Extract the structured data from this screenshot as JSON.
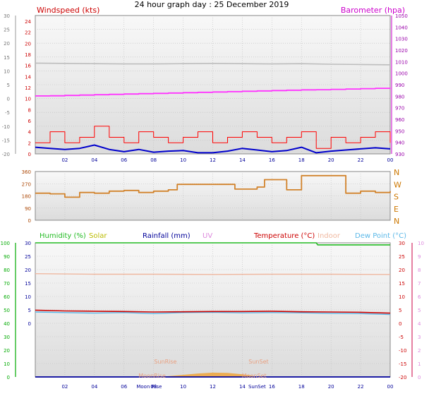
{
  "title": "24 hour graph day : 25 December 2019",
  "colors": {
    "bg": "#ffffff",
    "plot_top": "#f8f8f8",
    "plot_bottom": "#dcdcdc",
    "grid": "#bdbdbd",
    "wind_label": "#cc0000",
    "wind_gust": "#ff0000",
    "wind_avg": "#0000cc",
    "baro": "#cc00cc",
    "baro_line": "#ff33ff",
    "baro_ticks": "#9900aa",
    "grey_series": "#bdbdbd",
    "dir_line": "#d2832c",
    "dir_label": "#cc7700",
    "humidity": "#22bb22",
    "humidity_axis": "#00aa00",
    "solar": "#bbbb00",
    "rainfall": "#000099",
    "uv": "#dd88dd",
    "temperature": "#cc0000",
    "indoor": "#f0b8a0",
    "dewpoint": "#5bb8e8",
    "temp_right_axis": "#cc0044",
    "sun_fill": "#f0a030",
    "moon_text": "#000099",
    "sunrise_text": "#e8a080",
    "x_axis_text": "#000099",
    "left_axis_text": "#777777"
  },
  "chart_data": [
    {
      "id": "wind_baro",
      "type": "line",
      "title": "",
      "series_labels": {
        "wind": "Windspeed (kts)",
        "baro": "Barometer (hpa)"
      },
      "x_ticks": [
        "02",
        "04",
        "06",
        "08",
        "10",
        "12",
        "14",
        "16",
        "18",
        "20",
        "22",
        "00"
      ],
      "left_outer_ticks": [
        "30",
        "25",
        "20",
        "15",
        "10",
        "5",
        "0",
        "-5",
        "-10",
        "-15",
        "-20"
      ],
      "left_inner_ticks": [
        "24",
        "22",
        "20",
        "18",
        "16",
        "14",
        "12",
        "10",
        "8",
        "6",
        "4",
        "2",
        "0"
      ],
      "right_ticks": [
        "1050",
        "1040",
        "1030",
        "1020",
        "1010",
        "1000",
        "990",
        "980",
        "970",
        "960",
        "950",
        "940",
        "930"
      ],
      "ylim_wind": [
        0,
        25
      ],
      "ylim_baro": [
        975,
        1055
      ],
      "series": [
        {
          "name": "Barometer",
          "key": "baro",
          "x": [
            0,
            1,
            2,
            3,
            4,
            5,
            6,
            7,
            8,
            9,
            10,
            11,
            12,
            13,
            14,
            15,
            16,
            17,
            18,
            19,
            20,
            21,
            22,
            23,
            24
          ],
          "values": [
            1008.5,
            1008.6,
            1008.8,
            1009.0,
            1009.2,
            1009.4,
            1009.6,
            1009.8,
            1010.0,
            1010.2,
            1010.4,
            1010.6,
            1010.8,
            1011.0,
            1011.2,
            1011.4,
            1011.6,
            1011.8,
            1012.0,
            1012.1,
            1012.3,
            1012.5,
            1012.7,
            1012.9,
            1013.1
          ]
        },
        {
          "name": "",
          "key": "grey",
          "x": [
            0,
            2,
            4,
            6,
            8,
            10,
            12,
            14,
            16,
            18,
            20,
            22,
            24
          ],
          "values": [
            12.8,
            12.7,
            12.6,
            12.5,
            12.5,
            12.6,
            12.7,
            12.6,
            12.5,
            12.6,
            12.4,
            12.3,
            12.2
          ]
        },
        {
          "name": "Gust",
          "key": "gust",
          "x": [
            0,
            1,
            2,
            3,
            4,
            5,
            6,
            7,
            8,
            9,
            10,
            11,
            12,
            13,
            14,
            15,
            16,
            17,
            18,
            19,
            20,
            21,
            22,
            23,
            24
          ],
          "values": [
            2,
            4,
            2,
            3,
            5,
            3,
            2,
            4,
            3,
            2,
            3,
            4,
            2,
            3,
            4,
            3,
            2,
            3,
            4,
            1,
            3,
            2,
            3,
            4,
            2
          ]
        },
        {
          "name": "Average",
          "key": "avg",
          "x": [
            0,
            1,
            2,
            3,
            4,
            5,
            6,
            7,
            8,
            9,
            10,
            11,
            12,
            13,
            14,
            15,
            16,
            17,
            18,
            19,
            20,
            21,
            22,
            23,
            24
          ],
          "values": [
            1.2,
            1.0,
            0.8,
            1.0,
            1.6,
            0.8,
            0.4,
            0.8,
            0.3,
            0.5,
            0.6,
            0.2,
            0.2,
            0.5,
            1.0,
            0.7,
            0.4,
            0.6,
            1.2,
            0.2,
            0.5,
            0.7,
            0.9,
            1.1,
            0.9
          ]
        }
      ]
    },
    {
      "id": "wind_direction",
      "type": "line",
      "title": "",
      "y_ticks": [
        "360",
        "270",
        "180",
        "90",
        "0"
      ],
      "compass": [
        "N",
        "W",
        "S",
        "E",
        "N"
      ],
      "ylim": [
        0,
        360
      ],
      "series": [
        {
          "name": "Direction",
          "x": [
            0,
            1,
            2,
            3,
            4,
            5,
            6,
            7,
            8,
            9,
            9.6,
            10,
            11,
            12,
            13,
            13.5,
            14,
            15,
            15.5,
            16,
            17,
            18,
            19,
            20,
            21,
            22,
            23,
            24
          ],
          "values": [
            200,
            195,
            170,
            205,
            200,
            215,
            220,
            205,
            215,
            225,
            265,
            265,
            265,
            265,
            265,
            230,
            230,
            245,
            300,
            300,
            225,
            330,
            330,
            330,
            200,
            215,
            205,
            215
          ]
        }
      ]
    },
    {
      "id": "temp_hum_rain",
      "type": "line",
      "title": "",
      "series_labels": {
        "humidity": "Humidity (%)",
        "solar": "Solar",
        "rainfall": "Rainfall (mm)",
        "uv": "UV",
        "temperature": "Temperature (°C)",
        "indoor": "Indoor",
        "dewpoint": "Dew Point (°C)"
      },
      "x_ticks": [
        "02",
        "04",
        "06",
        "08",
        "10",
        "12",
        "14",
        "16",
        "18",
        "20",
        "22",
        "00"
      ],
      "humidity_ticks": [
        "100",
        "90",
        "80",
        "70",
        "60",
        "50",
        "40",
        "30",
        "20",
        "10",
        "0"
      ],
      "left_inner_ticks": [
        "30",
        "25",
        "20",
        "15",
        "10",
        "5",
        "0"
      ],
      "right_inner_ticks": [
        "30",
        "25",
        "20",
        "15",
        "10",
        "5",
        "0",
        "-5",
        "-10",
        "-15",
        "-20"
      ],
      "right_outer_ticks": [
        "10",
        "9",
        "8",
        "7",
        "6",
        "5",
        "4",
        "3",
        "2",
        "1",
        "0"
      ],
      "ylim_temp": [
        -20,
        30
      ],
      "series": [
        {
          "name": "Humidity",
          "key": "humidity",
          "x": [
            0,
            19,
            19.1,
            24
          ],
          "values": [
            100,
            100,
            98.5,
            98.5
          ]
        },
        {
          "name": "Indoor",
          "key": "indoor",
          "x": [
            0,
            4,
            8,
            12,
            16,
            20,
            24
          ],
          "values": [
            18.5,
            18.3,
            18.3,
            18.2,
            18.3,
            18.3,
            18.2
          ]
        },
        {
          "name": "Temperature",
          "key": "temperature",
          "x": [
            0,
            2,
            4,
            6,
            8,
            10,
            12,
            14,
            16,
            18,
            20,
            22,
            24
          ],
          "values": [
            4.9,
            4.6,
            4.5,
            4.4,
            4.2,
            4.3,
            4.4,
            4.4,
            4.5,
            4.3,
            4.2,
            4.1,
            3.8
          ]
        },
        {
          "name": "Dew Point",
          "key": "dewpoint",
          "x": [
            0,
            2,
            4,
            6,
            8,
            10,
            12,
            14,
            16,
            18,
            20,
            22,
            24
          ],
          "values": [
            4.2,
            4.0,
            3.8,
            4.0,
            3.6,
            4.0,
            4.1,
            3.9,
            4.0,
            3.9,
            3.7,
            3.6,
            3.3
          ]
        },
        {
          "name": "Rainfall",
          "key": "rainfall",
          "x": [
            0,
            24
          ],
          "values": [
            0,
            0
          ]
        },
        {
          "name": "Solar",
          "key": "solar",
          "x": [
            8.5,
            9,
            10,
            11,
            12,
            13,
            14,
            14.6,
            15
          ],
          "values": [
            0,
            0.3,
            0.8,
            1.3,
            1.6,
            1.5,
            1.0,
            0.5,
            0
          ]
        }
      ],
      "annotations": {
        "sunrise": "SunRise",
        "sunset": "SunSet",
        "moonrise": "MoonRise",
        "moonset": "MoonSet",
        "moonrise_axis": "Moon Rise",
        "sunset_axis": "SunSet"
      }
    }
  ]
}
